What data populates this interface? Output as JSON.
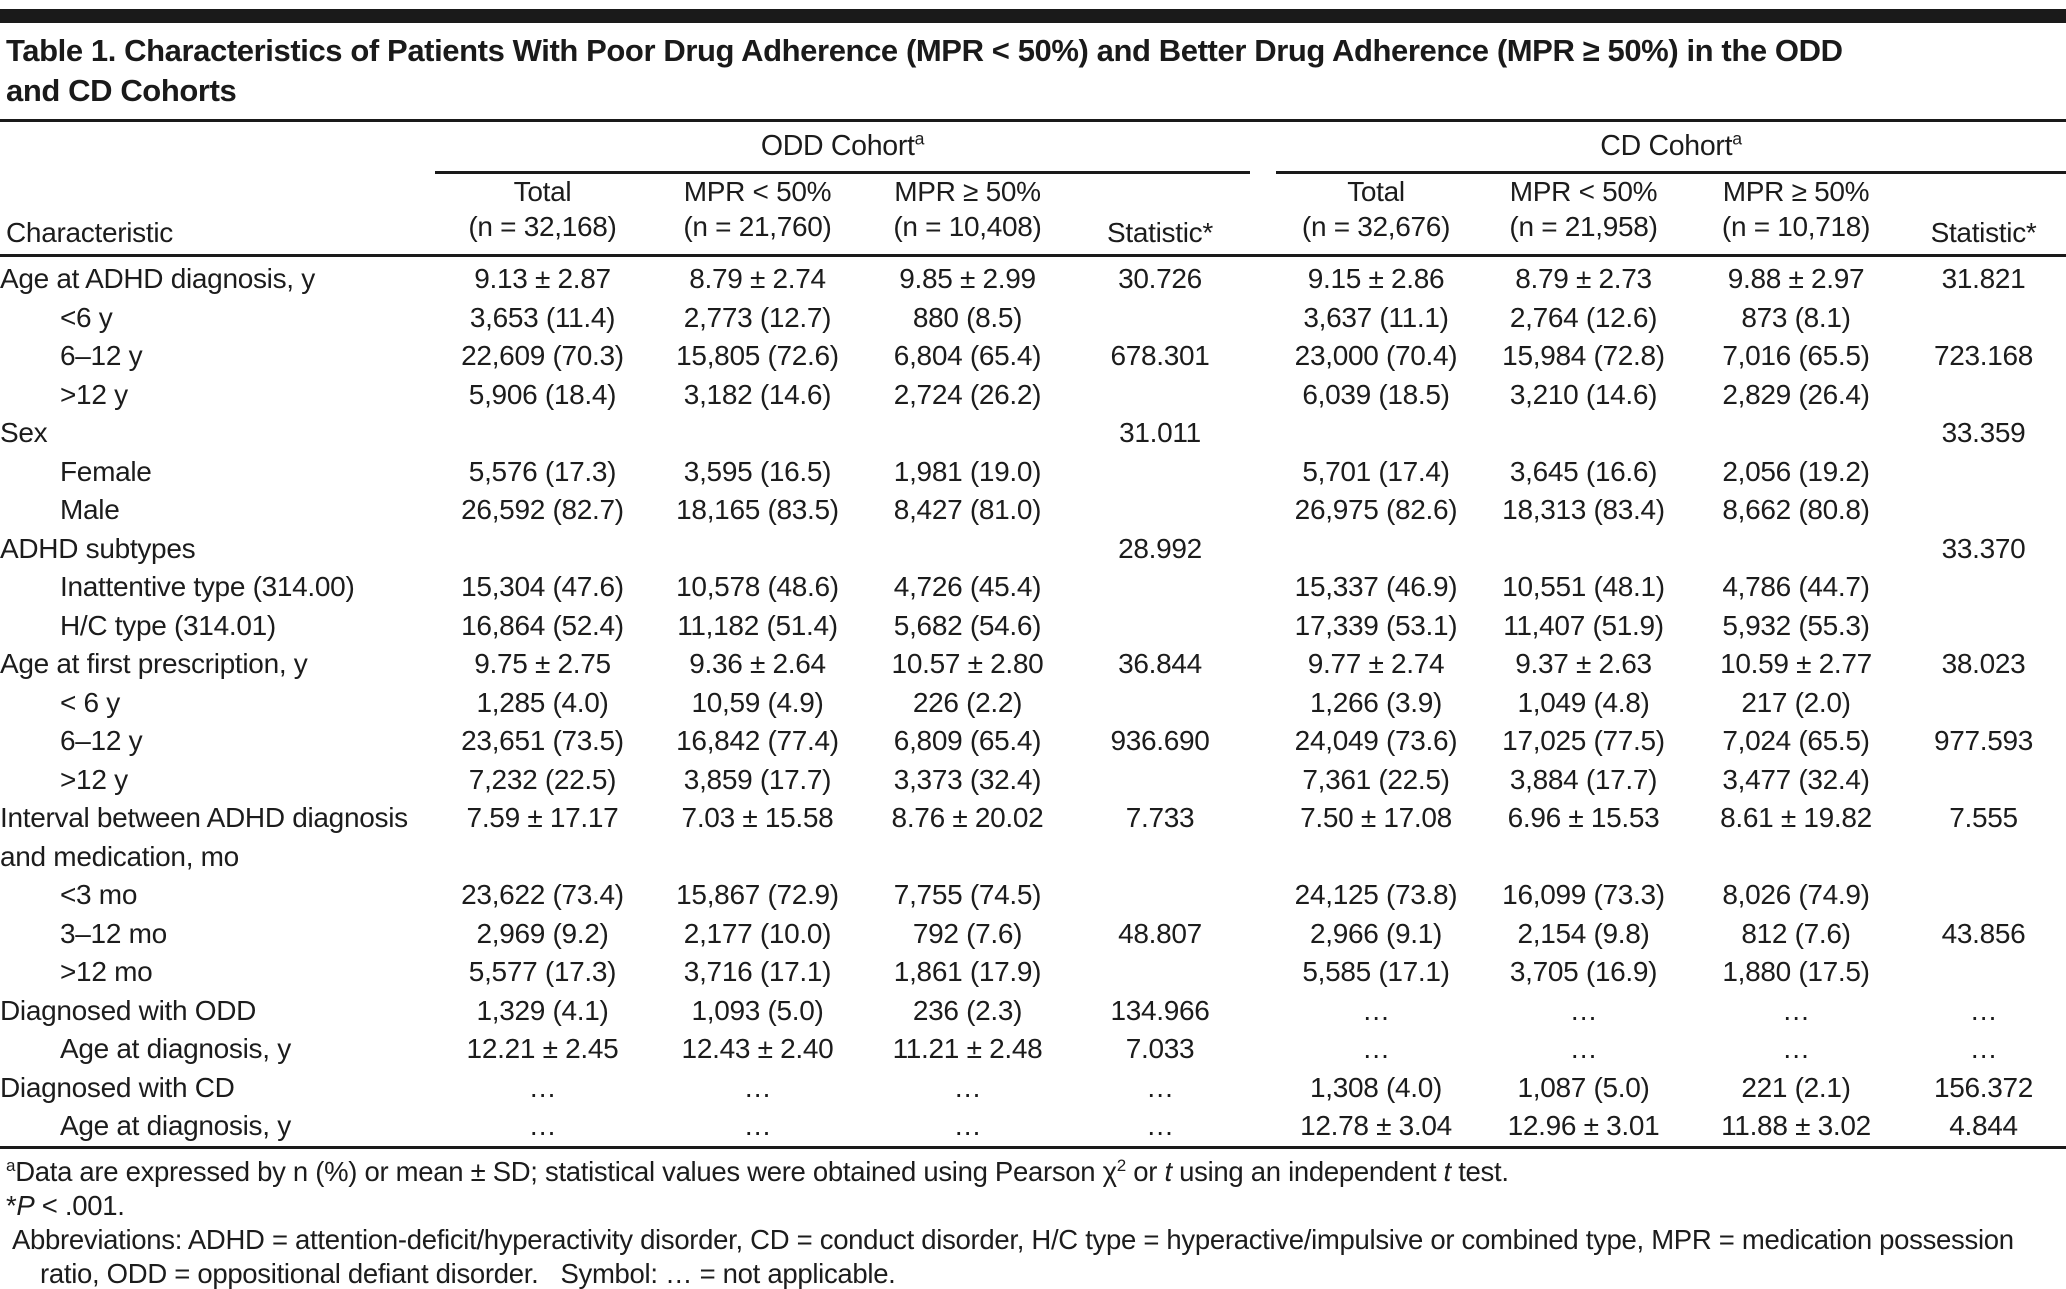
{
  "title": {
    "line1": "Table 1. Characteristics of Patients With Poor Drug Adherence (MPR < 50%) and Better Drug Adherence (MPR ≥ 50%) in the ODD",
    "line2": "and CD Cohorts"
  },
  "table": {
    "characteristic_label": "Characteristic",
    "groups": [
      {
        "label": "ODD Cohort",
        "sup": "a"
      },
      {
        "label": "CD Cohort",
        "sup": "a"
      }
    ],
    "columns": [
      {
        "line1": "Total",
        "line2": "(n = 32,168)"
      },
      {
        "line1": "MPR < 50%",
        "line2": "(n = 21,760)"
      },
      {
        "line1": "MPR ≥ 50%",
        "line2": "(n = 10,408)"
      },
      {
        "line1": "",
        "line2": "Statistic*"
      },
      {
        "line1": "Total",
        "line2": "(n = 32,676)"
      },
      {
        "line1": "MPR < 50%",
        "line2": "(n = 21,958)"
      },
      {
        "line1": "MPR ≥ 50%",
        "line2": "(n = 10,718)"
      },
      {
        "line1": "",
        "line2": "Statistic*"
      }
    ],
    "rows": [
      {
        "label": "Age at ADHD diagnosis, y",
        "indent": 0,
        "cells": [
          "9.13 ± 2.87",
          "8.79 ± 2.74",
          "9.85 ± 2.99",
          "30.726",
          "9.15 ± 2.86",
          "8.79 ± 2.73",
          "9.88 ± 2.97",
          "31.821"
        ]
      },
      {
        "label": "<6 y",
        "indent": 1,
        "cells": [
          "3,653 (11.4)",
          "2,773 (12.7)",
          "880 (8.5)",
          "",
          "3,637 (11.1)",
          "2,764 (12.6)",
          "873 (8.1)",
          ""
        ]
      },
      {
        "label": "6–12 y",
        "indent": 1,
        "cells": [
          "22,609 (70.3)",
          "15,805 (72.6)",
          "6,804 (65.4)",
          "678.301",
          "23,000 (70.4)",
          "15,984 (72.8)",
          "7,016 (65.5)",
          "723.168"
        ]
      },
      {
        "label": ">12 y",
        "indent": 1,
        "cells": [
          "5,906 (18.4)",
          "3,182 (14.6)",
          "2,724 (26.2)",
          "",
          "6,039 (18.5)",
          "3,210 (14.6)",
          "2,829 (26.4)",
          ""
        ]
      },
      {
        "label": "Sex",
        "indent": 0,
        "cells": [
          "",
          "",
          "",
          "31.011",
          "",
          "",
          "",
          "33.359"
        ]
      },
      {
        "label": "Female",
        "indent": 1,
        "cells": [
          "5,576 (17.3)",
          "3,595 (16.5)",
          "1,981 (19.0)",
          "",
          "5,701 (17.4)",
          "3,645 (16.6)",
          "2,056 (19.2)",
          ""
        ]
      },
      {
        "label": "Male",
        "indent": 1,
        "cells": [
          "26,592 (82.7)",
          "18,165 (83.5)",
          "8,427 (81.0)",
          "",
          "26,975 (82.6)",
          "18,313 (83.4)",
          "8,662 (80.8)",
          ""
        ]
      },
      {
        "label": "ADHD subtypes",
        "indent": 0,
        "cells": [
          "",
          "",
          "",
          "28.992",
          "",
          "",
          "",
          "33.370"
        ]
      },
      {
        "label": "Inattentive type (314.00)",
        "indent": 1,
        "cells": [
          "15,304 (47.6)",
          "10,578 (48.6)",
          "4,726 (45.4)",
          "",
          "15,337 (46.9)",
          "10,551 (48.1)",
          "4,786 (44.7)",
          ""
        ]
      },
      {
        "label": "H/C type (314.01)",
        "indent": 1,
        "cells": [
          "16,864 (52.4)",
          "11,182 (51.4)",
          "5,682 (54.6)",
          "",
          "17,339 (53.1)",
          "11,407 (51.9)",
          "5,932 (55.3)",
          ""
        ]
      },
      {
        "label": "Age at first prescription, y",
        "indent": 0,
        "cells": [
          "9.75 ± 2.75",
          "9.36 ± 2.64",
          "10.57 ± 2.80",
          "36.844",
          "9.77 ± 2.74",
          "9.37 ± 2.63",
          "10.59 ± 2.77",
          "38.023"
        ]
      },
      {
        "label": "< 6 y",
        "indent": 1,
        "cells": [
          "1,285 (4.0)",
          "10,59 (4.9)",
          "226 (2.2)",
          "",
          "1,266 (3.9)",
          "1,049 (4.8)",
          "217 (2.0)",
          ""
        ]
      },
      {
        "label": "6–12 y",
        "indent": 1,
        "cells": [
          "23,651 (73.5)",
          "16,842 (77.4)",
          "6,809 (65.4)",
          "936.690",
          "24,049 (73.6)",
          "17,025 (77.5)",
          "7,024 (65.5)",
          "977.593"
        ]
      },
      {
        "label": ">12 y",
        "indent": 1,
        "cells": [
          "7,232 (22.5)",
          "3,859 (17.7)",
          "3,373 (32.4)",
          "",
          "7,361 (22.5)",
          "3,884 (17.7)",
          "3,477 (32.4)",
          ""
        ]
      },
      {
        "label": "Interval between ADHD diagnosis and medication, mo",
        "indent": 0,
        "cells": [
          "7.59 ± 17.17",
          "7.03 ± 15.58",
          "8.76 ± 20.02",
          "7.733",
          "7.50 ± 17.08",
          "6.96 ± 15.53",
          "8.61 ± 19.82",
          "7.555"
        ]
      },
      {
        "label": "<3 mo",
        "indent": 1,
        "cells": [
          "23,622 (73.4)",
          "15,867 (72.9)",
          "7,755 (74.5)",
          "",
          "24,125 (73.8)",
          "16,099 (73.3)",
          "8,026 (74.9)",
          ""
        ]
      },
      {
        "label": "3–12 mo",
        "indent": 1,
        "cells": [
          "2,969 (9.2)",
          "2,177 (10.0)",
          "792 (7.6)",
          "48.807",
          "2,966 (9.1)",
          "2,154 (9.8)",
          "812 (7.6)",
          "43.856"
        ]
      },
      {
        "label": ">12 mo",
        "indent": 1,
        "cells": [
          "5,577 (17.3)",
          "3,716 (17.1)",
          "1,861 (17.9)",
          "",
          "5,585 (17.1)",
          "3,705 (16.9)",
          "1,880 (17.5)",
          ""
        ]
      },
      {
        "label": "Diagnosed with ODD",
        "indent": 0,
        "cells": [
          "1,329 (4.1)",
          "1,093 (5.0)",
          "236 (2.3)",
          "134.966",
          "…",
          "…",
          "…",
          "…"
        ]
      },
      {
        "label": "Age at diagnosis, y",
        "indent": 1,
        "cells": [
          "12.21 ± 2.45",
          "12.43 ± 2.40",
          "11.21 ± 2.48",
          "7.033",
          "…",
          "…",
          "…",
          "…"
        ]
      },
      {
        "label": "Diagnosed with CD",
        "indent": 0,
        "cells": [
          "…",
          "…",
          "…",
          "…",
          "1,308 (4.0)",
          "1,087 (5.0)",
          "221 (2.1)",
          "156.372"
        ]
      },
      {
        "label": "Age at diagnosis, y",
        "indent": 1,
        "cells": [
          "…",
          "…",
          "…",
          "…",
          "12.78 ± 3.04",
          "12.96 ± 3.01",
          "11.88 ± 3.02",
          "4.844"
        ]
      }
    ]
  },
  "footnotes": {
    "a": {
      "sup": "a",
      "s1": "Data are expressed by n (%) or mean ± SD; statistical values were obtained using Pearson χ",
      "chi_sup": "2",
      "s2": " or ",
      "t1": "t",
      "s3": " using an independent ",
      "t2": "t",
      "s4": " test."
    },
    "p": {
      "s1": "*",
      "p": "P",
      "s2": " < .001."
    },
    "abbreviations": "Abbreviations: ADHD = attention-deficit/hyperactivity disorder, CD = conduct disorder, H/C type = hyperactive/impulsive or combined type, MPR = medication possession ratio, ODD = oppositional defiant disorder.   Symbol: … = not applicable."
  }
}
